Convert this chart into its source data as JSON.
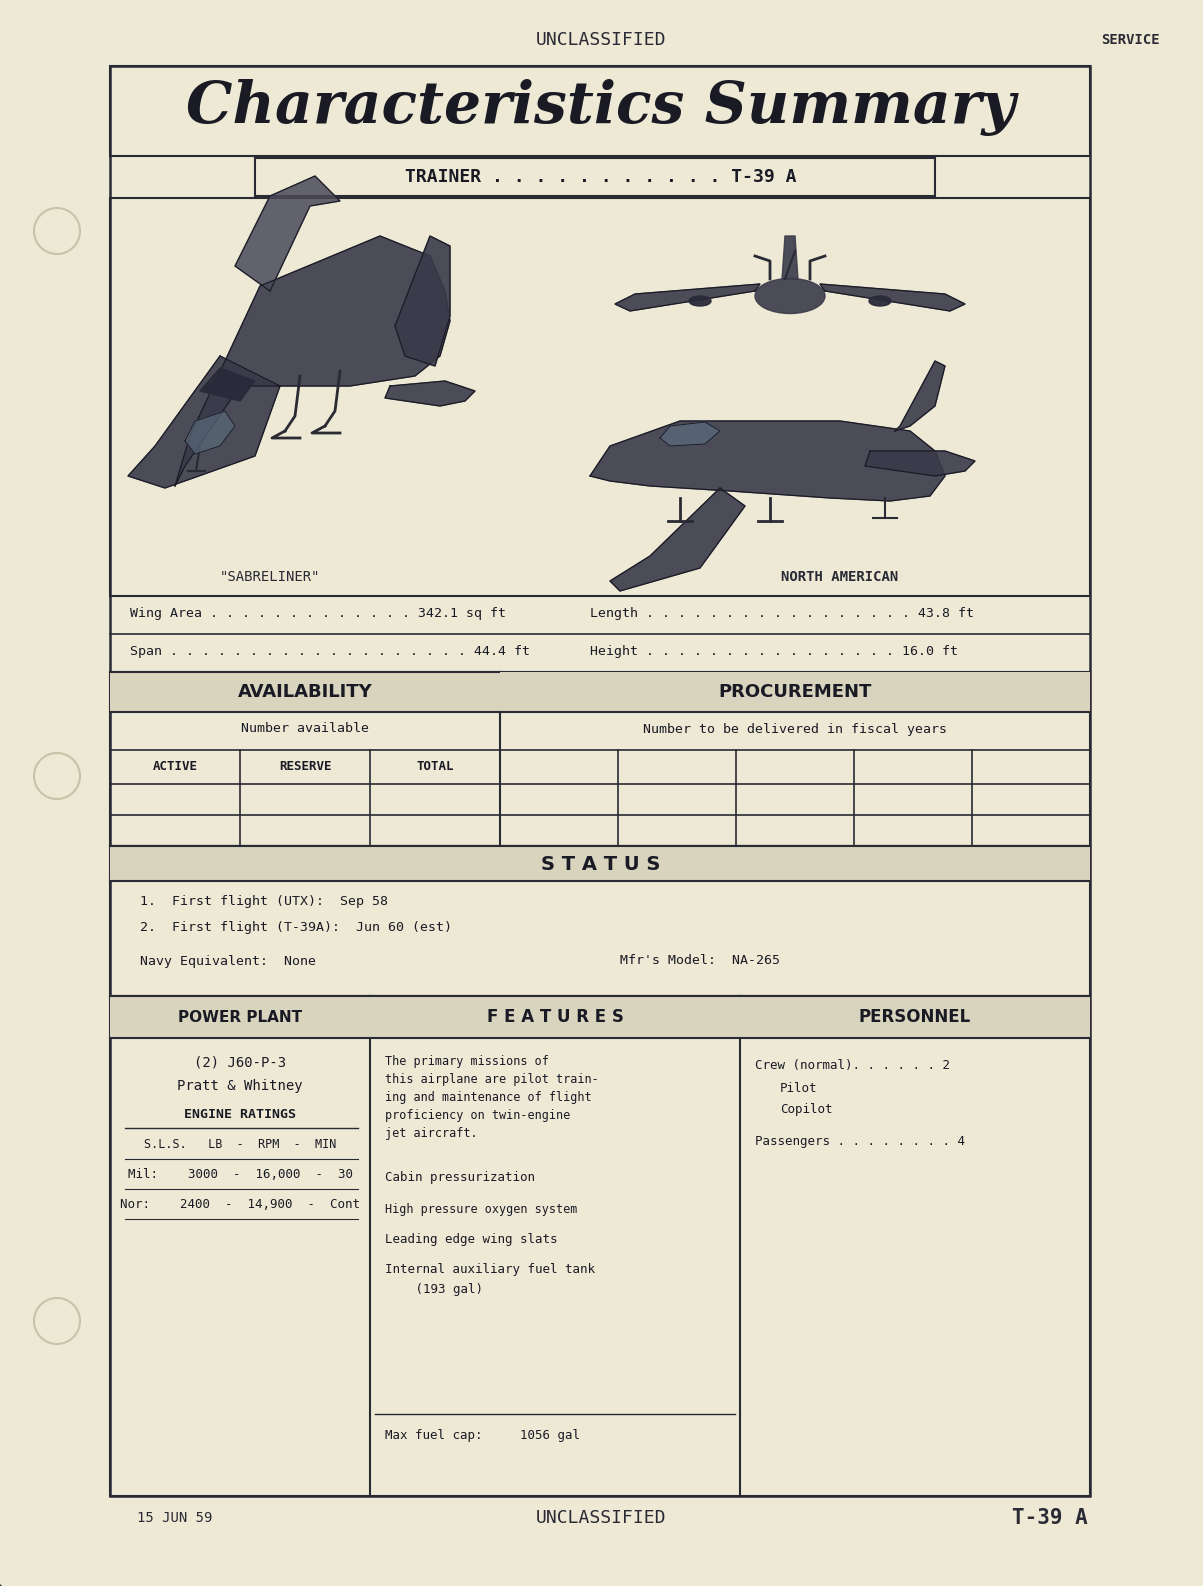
{
  "bg_color": "#e8e4d0",
  "page_bg": "#ede9d5",
  "border_color": "#2a2a35",
  "title_text": "Characteristics Summary",
  "unclassified_top": "UNCLASSIFIED",
  "service_text": "SERVICE",
  "unclassified_bottom": "UNCLASSIFIED",
  "date_text": "15 JUN 59",
  "bottom_id": "T-39 A",
  "trainer_label": "TRAINER . . . . . . . . . . . T-39 A",
  "wing_area": "Wing Area . . . . . . . . . . . . . 342.1 sq ft",
  "length_label": "Length . . . . . . . . . . . . . . . . . 43.8 ft",
  "span_label": "Span . . . . . . . . . . . . . . . . . . . 44.4 ft",
  "height_label": "Height . . . . . . . . . . . . . . . . 16.0 ft",
  "sabreliner_label": "\"SABRELINER\"",
  "north_american_label": "NORTH AMERICAN",
  "availability_title": "AVAILABILITY",
  "procurement_title": "PROCUREMENT",
  "number_available": "Number available",
  "number_fiscal": "Number to be delivered in fiscal years",
  "active_label": "ACTIVE",
  "reserve_label": "RESERVE",
  "total_label": "TOTAL",
  "status_title": "S T A T U S",
  "status_line1": "1.  First flight (UTX):  Sep 58",
  "status_line2": "2.  First flight (T-39A):  Jun 60 (est)",
  "navy_equiv": "Navy Equivalent:  None",
  "mfr_model": "Mfr's Model:  NA-265",
  "power_plant_title": "POWER PLANT",
  "engine_model": "(2) J60-P-3",
  "engine_mfr": "Pratt & Whitney",
  "engine_ratings": "ENGINE RATINGS",
  "sls_header": "S.L.S.   LB  -  RPM  -  MIN",
  "mil_line": "Mil:    3000  -  16,000  -  30",
  "nor_line": "Nor:    2400  -  14,900  -  Cont",
  "features_title": "F E A T U R E S",
  "features_line1": "The primary missions of",
  "features_line2": "this airplane are pilot train-",
  "features_line3": "ing and maintenance of flight",
  "features_line4": "proficiency on twin-engine",
  "features_line5": "jet aircraft.",
  "features_item1": "Cabin pressurization",
  "features_item2": "High pressure oxygen system",
  "features_item3": "Leading edge wing slats",
  "features_item4a": "Internal auxiliary fuel tank",
  "features_item4b": "   (193 gal)",
  "features_fuel": "Max fuel cap:     1056 gal",
  "personnel_title": "PERSONNEL",
  "personnel_crew": "Crew (normal). . . . . . 2",
  "personnel_pilot": "Pilot",
  "personnel_copilot": "Copilot",
  "personnel_pass": "Passengers . . . . . . . . 4",
  "header_fill": "#d8d4be",
  "hole_color": "#c8c3a8"
}
